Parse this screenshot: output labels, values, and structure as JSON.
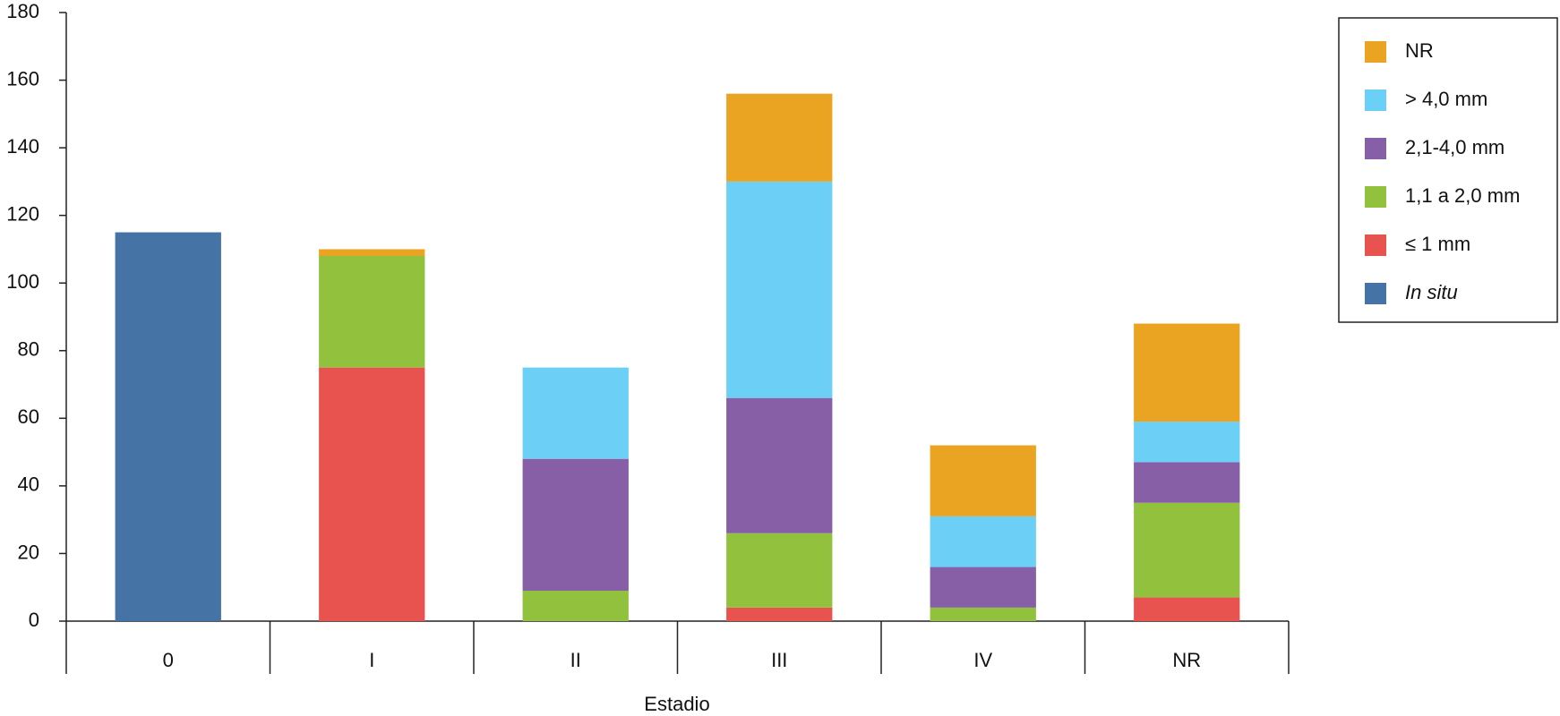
{
  "chart_data": {
    "type": "stacked_bar",
    "x_label": "Estadio",
    "categories": [
      "0",
      "I",
      "II",
      "III",
      "IV",
      "NR"
    ],
    "series": [
      {
        "name": "In situ",
        "color": "#4673a6",
        "italic": true,
        "values": [
          115,
          0,
          0,
          0,
          0,
          0
        ]
      },
      {
        "name": "≤ 1 mm",
        "color": "#e9534f",
        "values": [
          0,
          75,
          0,
          4,
          0,
          7
        ]
      },
      {
        "name": "1,1 a 2,0 mm",
        "color": "#92c13e",
        "values": [
          0,
          33,
          9,
          22,
          4,
          28
        ]
      },
      {
        "name": "2,1-4,0 mm",
        "color": "#865fa6",
        "values": [
          0,
          0,
          39,
          40,
          12,
          12
        ]
      },
      {
        "name": "> 4,0 mm",
        "color": "#6ccff6",
        "values": [
          0,
          0,
          27,
          64,
          15,
          12
        ]
      },
      {
        "name": "NR",
        "color": "#eba422",
        "values": [
          0,
          2,
          0,
          26,
          21,
          29
        ]
      }
    ],
    "ylim": [
      0,
      180
    ],
    "yticks": [
      0,
      20,
      40,
      60,
      80,
      100,
      120,
      140,
      160,
      180
    ],
    "grid": false,
    "legend": "right"
  }
}
